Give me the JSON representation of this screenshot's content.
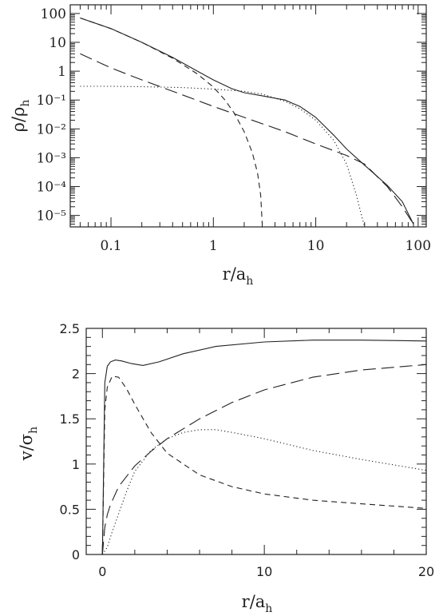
{
  "chart_data": [
    {
      "type": "line",
      "xlabel": "r/a",
      "xlabel_sub": "h",
      "ylabel": "ρ/ρ",
      "ylabel_sub": "h",
      "xscale": "log",
      "yscale": "log",
      "xlim": [
        0.04,
        120
      ],
      "ylim": [
        4e-06,
        200
      ],
      "xticks": [
        "0.1",
        "1",
        "10",
        "100"
      ],
      "yticks": [
        "100",
        "10",
        "1",
        "10⁻¹",
        "10⁻²",
        "10⁻³",
        "10⁻⁴",
        "10⁻⁵"
      ],
      "series": [
        {
          "style": "solid",
          "x": [
            0.05,
            0.1,
            0.2,
            0.4,
            0.7,
            1,
            1.5,
            2,
            3,
            5,
            7,
            10,
            15,
            20,
            30,
            50,
            70,
            90
          ],
          "values": [
            70,
            30,
            10,
            3,
            1.0,
            0.5,
            0.25,
            0.18,
            0.14,
            0.1,
            0.06,
            0.025,
            0.006,
            0.002,
            0.00055,
            0.00011,
            3e-05,
            5e-06
          ]
        },
        {
          "style": "short-dash",
          "x": [
            0.05,
            0.1,
            0.2,
            0.4,
            0.7,
            1,
            1.3,
            1.6,
            2,
            2.4,
            2.7,
            2.9,
            3.0
          ],
          "values": [
            70,
            30,
            10,
            2.8,
            0.8,
            0.28,
            0.1,
            0.035,
            0.008,
            0.0015,
            0.0003,
            5e-05,
            5e-06
          ]
        },
        {
          "style": "long-dash",
          "x": [
            0.05,
            0.1,
            0.2,
            0.5,
            1,
            2,
            5,
            10,
            20,
            30,
            50,
            70,
            90
          ],
          "values": [
            4,
            1.3,
            0.5,
            0.15,
            0.06,
            0.025,
            0.008,
            0.003,
            0.0012,
            0.0006,
            0.0001,
            2e-05,
            5e-06
          ]
        },
        {
          "style": "dotted",
          "x": [
            0.05,
            0.1,
            0.2,
            0.5,
            1,
            2,
            3,
            5,
            7,
            10,
            15,
            20,
            25,
            28,
            30
          ],
          "values": [
            0.3,
            0.3,
            0.29,
            0.27,
            0.24,
            0.2,
            0.16,
            0.09,
            0.05,
            0.02,
            0.004,
            0.0006,
            5e-05,
            1e-05,
            4e-06
          ]
        }
      ]
    },
    {
      "type": "line",
      "xlabel": "r/a",
      "xlabel_sub": "h",
      "ylabel": "v/σ",
      "ylabel_sub": "h",
      "xlim": [
        -1,
        20
      ],
      "ylim": [
        0,
        2.5
      ],
      "xticks": [
        0,
        10,
        20
      ],
      "yticks": [
        0,
        0.5,
        1,
        1.5,
        2,
        2.5
      ],
      "series": [
        {
          "style": "solid",
          "x": [
            0,
            0.15,
            0.3,
            0.5,
            0.8,
            1.2,
            1.8,
            2.5,
            3.5,
            5,
            7,
            10,
            13,
            16,
            20
          ],
          "values": [
            0,
            1.9,
            2.08,
            2.13,
            2.15,
            2.14,
            2.11,
            2.09,
            2.13,
            2.22,
            2.3,
            2.35,
            2.37,
            2.37,
            2.36
          ]
        },
        {
          "style": "short-dash",
          "x": [
            0,
            0.15,
            0.3,
            0.6,
            1,
            1.5,
            2,
            3,
            4,
            6,
            8,
            10,
            13,
            16,
            20
          ],
          "values": [
            0,
            1.6,
            1.85,
            1.97,
            1.96,
            1.83,
            1.66,
            1.35,
            1.12,
            0.88,
            0.75,
            0.67,
            0.6,
            0.56,
            0.51
          ]
        },
        {
          "style": "long-dash",
          "x": [
            0,
            0.15,
            0.3,
            0.5,
            1,
            2,
            3,
            4,
            6,
            8,
            10,
            13,
            16,
            20
          ],
          "values": [
            0,
            0.3,
            0.44,
            0.55,
            0.75,
            0.98,
            1.14,
            1.28,
            1.5,
            1.68,
            1.82,
            1.96,
            2.04,
            2.1
          ]
        },
        {
          "style": "dotted",
          "x": [
            0,
            0.3,
            0.6,
            1,
            1.5,
            2,
            3,
            4,
            5,
            6,
            7,
            8,
            10,
            13,
            16,
            20
          ],
          "values": [
            0,
            0.08,
            0.25,
            0.45,
            0.7,
            0.92,
            1.15,
            1.28,
            1.35,
            1.38,
            1.38,
            1.35,
            1.28,
            1.15,
            1.05,
            0.93
          ]
        }
      ]
    }
  ]
}
